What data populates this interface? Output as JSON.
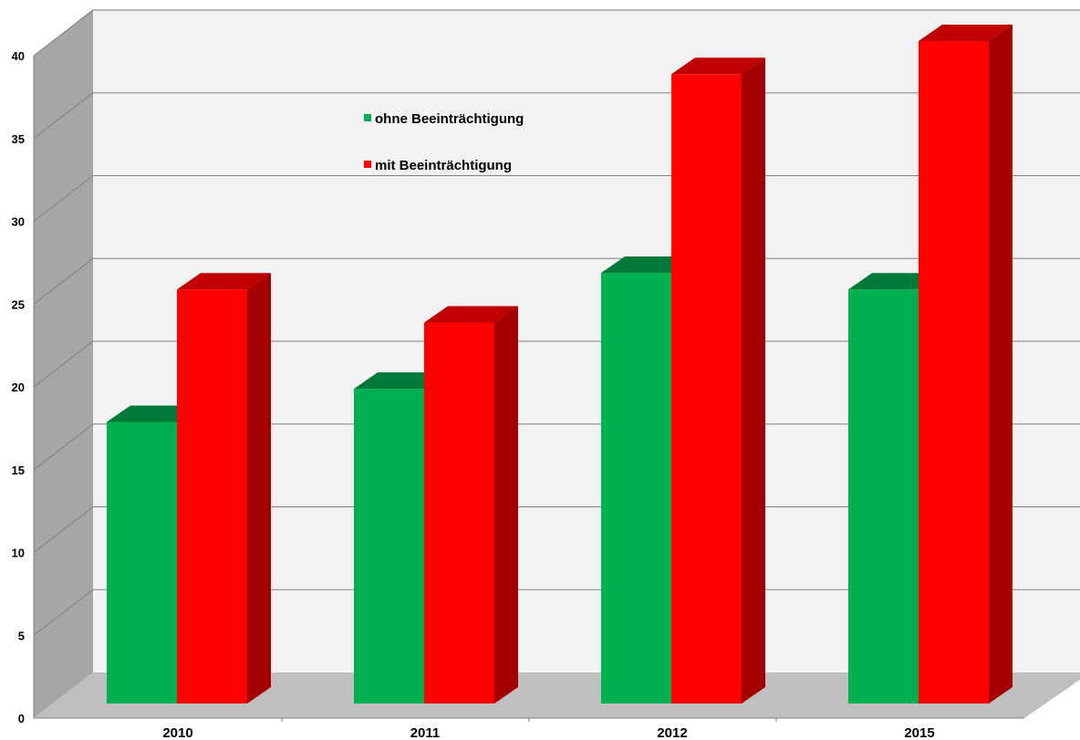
{
  "chart_data": {
    "type": "bar",
    "categories": [
      "2010",
      "2011",
      "2012",
      "2015"
    ],
    "series": [
      {
        "name": "ohne Beeinträchtigung",
        "values": [
          17,
          19,
          26,
          25
        ],
        "color": "#00b050",
        "top_color": "#007a38"
      },
      {
        "name": "mit Beeinträchtigung",
        "values": [
          25,
          23,
          38,
          40
        ],
        "color": "#ff0000",
        "side_color": "#a50000",
        "top_color": "#c00000"
      }
    ],
    "title": "",
    "xlabel": "",
    "ylabel": "",
    "ylim": [
      0,
      40
    ],
    "yticks": [
      0,
      5,
      10,
      15,
      20,
      25,
      30,
      35,
      40
    ],
    "grid": true,
    "style": "3d-clustered-column",
    "legend_position": "top-center-inside",
    "colors": {
      "wall": "#f2f2f2",
      "side_wall": "#a6a6a6",
      "floor": "#bfbfbf",
      "gridline": "#808080"
    }
  }
}
